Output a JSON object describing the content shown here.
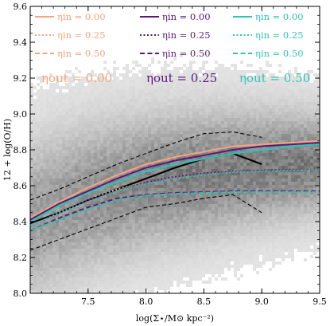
{
  "chart_data": {
    "type": "line",
    "xlabel": "log(Σ⋆/M⊙ kpc⁻²)",
    "ylabel": "12 + log(O/H)",
    "xlim": [
      7.0,
      9.5
    ],
    "ylim": [
      8.0,
      9.6
    ],
    "xticks": [
      7.5,
      8.0,
      8.5,
      9.0,
      9.5
    ],
    "yticks": [
      8.0,
      8.2,
      8.4,
      8.6,
      8.8,
      9.0,
      9.2,
      9.4,
      9.6
    ],
    "background": "grey 2D histogram of spaxel density",
    "observed": {
      "median": {
        "x": [
          7.0,
          7.25,
          7.5,
          7.75,
          8.0,
          8.25,
          8.5,
          8.75,
          9.0
        ],
        "y": [
          8.39,
          8.45,
          8.52,
          8.58,
          8.64,
          8.7,
          8.75,
          8.78,
          8.72
        ]
      },
      "upper": {
        "x": [
          7.0,
          7.25,
          7.5,
          7.75,
          8.0,
          8.25,
          8.5,
          8.75,
          9.0
        ],
        "y": [
          8.52,
          8.58,
          8.65,
          8.72,
          8.78,
          8.84,
          8.89,
          8.9,
          8.87
        ]
      },
      "lower": {
        "x": [
          7.0,
          7.25,
          7.5,
          7.75,
          8.0,
          8.25,
          8.5,
          8.75,
          9.0
        ],
        "y": [
          8.24,
          8.3,
          8.36,
          8.42,
          8.48,
          8.5,
          8.53,
          8.55,
          8.45
        ]
      }
    },
    "series": [
      {
        "eta_out": "0.00",
        "eta_in": "0.00",
        "color": "#f4a57a",
        "dash": "solid",
        "x": [
          7.0,
          7.25,
          7.5,
          7.75,
          8.0,
          8.25,
          8.5,
          8.75,
          9.0,
          9.25,
          9.5
        ],
        "y": [
          8.42,
          8.51,
          8.59,
          8.66,
          8.72,
          8.76,
          8.79,
          8.82,
          8.83,
          8.84,
          8.85
        ]
      },
      {
        "eta_out": "0.00",
        "eta_in": "0.25",
        "color": "#f4a57a",
        "dash": "dotted",
        "x": [
          7.0,
          7.25,
          7.5,
          7.75,
          8.0,
          8.25,
          8.5,
          8.75,
          9.0,
          9.25,
          9.5
        ],
        "y": [
          8.37,
          8.45,
          8.52,
          8.58,
          8.62,
          8.65,
          8.67,
          8.68,
          8.685,
          8.69,
          8.69
        ]
      },
      {
        "eta_out": "0.00",
        "eta_in": "0.50",
        "color": "#f4a57a",
        "dash": "dashed",
        "x": [
          7.0,
          7.25,
          7.5,
          7.75,
          8.0,
          8.25,
          8.5,
          8.75,
          9.0,
          9.25,
          9.5
        ],
        "y": [
          8.35,
          8.42,
          8.48,
          8.53,
          8.55,
          8.56,
          8.565,
          8.57,
          8.57,
          8.57,
          8.57
        ]
      },
      {
        "eta_out": "0.25",
        "eta_in": "0.00",
        "color": "#5a1a78",
        "dash": "solid",
        "x": [
          7.0,
          7.25,
          7.5,
          7.75,
          8.0,
          8.25,
          8.5,
          8.75,
          9.0,
          9.25,
          9.5
        ],
        "y": [
          8.41,
          8.5,
          8.57,
          8.64,
          8.7,
          8.74,
          8.77,
          8.8,
          8.82,
          8.83,
          8.84
        ]
      },
      {
        "eta_out": "0.25",
        "eta_in": "0.25",
        "color": "#5a1a78",
        "dash": "dotted",
        "x": [
          7.0,
          7.25,
          7.5,
          7.75,
          8.0,
          8.25,
          8.5,
          8.75,
          9.0,
          9.25,
          9.5
        ],
        "y": [
          8.37,
          8.45,
          8.52,
          8.57,
          8.62,
          8.65,
          8.67,
          8.68,
          8.685,
          8.69,
          8.69
        ]
      },
      {
        "eta_out": "0.25",
        "eta_in": "0.50",
        "color": "#5a1a78",
        "dash": "dashed",
        "x": [
          7.0,
          7.25,
          7.5,
          7.75,
          8.0,
          8.25,
          8.5,
          8.75,
          9.0,
          9.25,
          9.5
        ],
        "y": [
          8.35,
          8.42,
          8.48,
          8.53,
          8.55,
          8.56,
          8.565,
          8.57,
          8.57,
          8.57,
          8.57
        ]
      },
      {
        "eta_out": "0.50",
        "eta_in": "0.00",
        "color": "#2ec4b6",
        "dash": "solid",
        "x": [
          7.0,
          7.25,
          7.5,
          7.75,
          8.0,
          8.25,
          8.5,
          8.75,
          9.0,
          9.25,
          9.5
        ],
        "y": [
          8.4,
          8.49,
          8.56,
          8.62,
          8.68,
          8.72,
          8.75,
          8.78,
          8.8,
          8.82,
          8.83
        ]
      },
      {
        "eta_out": "0.50",
        "eta_in": "0.25",
        "color": "#2ec4b6",
        "dash": "dotted",
        "x": [
          7.0,
          7.25,
          7.5,
          7.75,
          8.0,
          8.25,
          8.5,
          8.75,
          9.0,
          9.25,
          9.5
        ],
        "y": [
          8.37,
          8.45,
          8.51,
          8.57,
          8.61,
          8.64,
          8.66,
          8.675,
          8.68,
          8.685,
          8.69
        ]
      },
      {
        "eta_out": "0.50",
        "eta_in": "0.50",
        "color": "#2ec4b6",
        "dash": "dashed",
        "x": [
          7.0,
          7.25,
          7.5,
          7.75,
          8.0,
          8.25,
          8.5,
          8.75,
          9.0,
          9.25,
          9.5
        ],
        "y": [
          8.35,
          8.41,
          8.47,
          8.52,
          8.545,
          8.555,
          8.56,
          8.565,
          8.565,
          8.565,
          8.565
        ]
      }
    ],
    "legend": {
      "columns": [
        {
          "color": "#f4a57a",
          "header": "ηout = 0.00",
          "entries": [
            "ηin = 0.00",
            "ηin = 0.25",
            "ηin = 0.50"
          ]
        },
        {
          "color": "#5a1a78",
          "header": "ηout = 0.25",
          "entries": [
            "ηin = 0.00",
            "ηin = 0.25",
            "ηin = 0.50"
          ]
        },
        {
          "color": "#2ec4b6",
          "header": "ηout = 0.50",
          "entries": [
            "ηin = 0.00",
            "ηin = 0.25",
            "ηin = 0.50"
          ]
        }
      ]
    }
  }
}
